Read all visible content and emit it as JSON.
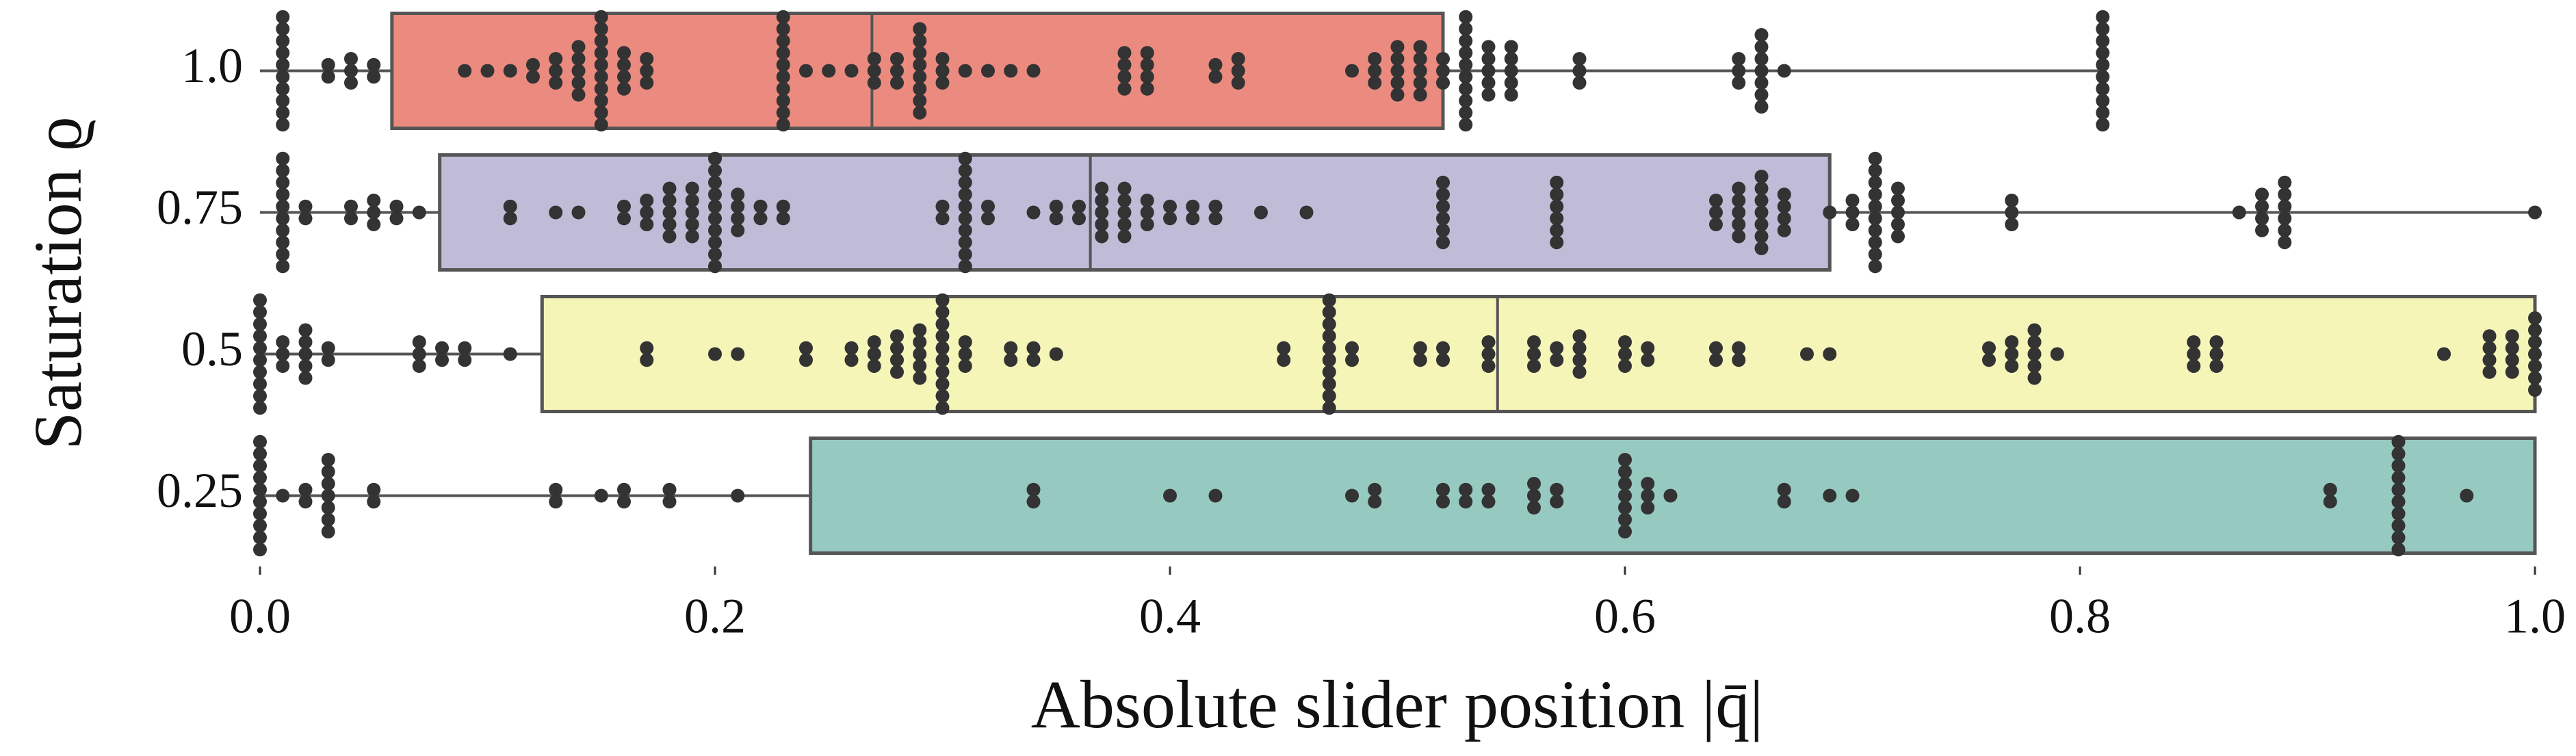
{
  "chart_data": {
    "type": "box",
    "xlabel": "Absolute slider position |q̄|",
    "ylabel": "Saturation ϱ",
    "categories": [
      "1.0",
      "0.75",
      "0.5",
      "0.25"
    ],
    "colors": [
      "#eb8b80",
      "#c0bcd8",
      "#f5f5b8",
      "#96c9c0"
    ],
    "boxes": [
      {
        "low": 0.0,
        "q1": 0.058,
        "median": 0.269,
        "q3": 0.52,
        "high": 0.81
      },
      {
        "low": 0.0,
        "q1": 0.079,
        "median": 0.365,
        "q3": 0.69,
        "high": 1.0
      },
      {
        "low": 0.0,
        "q1": 0.124,
        "median": 0.544,
        "q3": 1.0,
        "high": 1.0
      },
      {
        "low": 0.0,
        "q1": 0.242,
        "median": 0.941,
        "q3": 1.0,
        "high": 1.0
      }
    ],
    "points": [
      [
        0.01,
        0.01,
        0.01,
        0.01,
        0.01,
        0.01,
        0.01,
        0.01,
        0.01,
        0.01,
        0.03,
        0.03,
        0.04,
        0.04,
        0.04,
        0.05,
        0.05,
        0.09,
        0.1,
        0.11,
        0.12,
        0.12,
        0.13,
        0.13,
        0.13,
        0.14,
        0.14,
        0.14,
        0.14,
        0.14,
        0.15,
        0.15,
        0.15,
        0.15,
        0.15,
        0.15,
        0.15,
        0.15,
        0.15,
        0.15,
        0.16,
        0.16,
        0.16,
        0.16,
        0.17,
        0.17,
        0.17,
        0.23,
        0.23,
        0.23,
        0.23,
        0.23,
        0.23,
        0.23,
        0.23,
        0.23,
        0.23,
        0.24,
        0.25,
        0.26,
        0.27,
        0.27,
        0.27,
        0.28,
        0.28,
        0.28,
        0.29,
        0.29,
        0.29,
        0.29,
        0.29,
        0.29,
        0.29,
        0.29,
        0.3,
        0.3,
        0.3,
        0.31,
        0.32,
        0.33,
        0.34,
        0.38,
        0.38,
        0.38,
        0.38,
        0.39,
        0.39,
        0.39,
        0.39,
        0.42,
        0.42,
        0.43,
        0.43,
        0.43,
        0.48,
        0.49,
        0.49,
        0.49,
        0.5,
        0.5,
        0.5,
        0.5,
        0.5,
        0.51,
        0.51,
        0.51,
        0.51,
        0.51,
        0.52,
        0.52,
        0.52,
        0.53,
        0.53,
        0.53,
        0.53,
        0.53,
        0.53,
        0.53,
        0.53,
        0.53,
        0.53,
        0.54,
        0.54,
        0.54,
        0.54,
        0.54,
        0.55,
        0.55,
        0.55,
        0.55,
        0.55,
        0.58,
        0.58,
        0.58,
        0.65,
        0.65,
        0.65,
        0.66,
        0.66,
        0.66,
        0.66,
        0.66,
        0.66,
        0.66,
        0.67,
        0.81,
        0.81,
        0.81,
        0.81,
        0.81,
        0.81,
        0.81,
        0.81,
        0.81,
        0.81
      ],
      [
        0.01,
        0.01,
        0.01,
        0.01,
        0.01,
        0.01,
        0.01,
        0.01,
        0.01,
        0.01,
        0.02,
        0.02,
        0.04,
        0.04,
        0.05,
        0.05,
        0.05,
        0.06,
        0.06,
        0.07,
        0.11,
        0.11,
        0.13,
        0.14,
        0.16,
        0.16,
        0.17,
        0.17,
        0.17,
        0.18,
        0.18,
        0.18,
        0.18,
        0.18,
        0.19,
        0.19,
        0.19,
        0.19,
        0.19,
        0.2,
        0.2,
        0.2,
        0.2,
        0.2,
        0.2,
        0.2,
        0.2,
        0.2,
        0.2,
        0.21,
        0.21,
        0.21,
        0.21,
        0.22,
        0.22,
        0.23,
        0.23,
        0.3,
        0.3,
        0.31,
        0.31,
        0.31,
        0.31,
        0.31,
        0.31,
        0.31,
        0.31,
        0.31,
        0.31,
        0.32,
        0.32,
        0.34,
        0.35,
        0.35,
        0.36,
        0.36,
        0.37,
        0.37,
        0.37,
        0.37,
        0.37,
        0.38,
        0.38,
        0.38,
        0.38,
        0.38,
        0.39,
        0.39,
        0.39,
        0.4,
        0.4,
        0.41,
        0.41,
        0.42,
        0.42,
        0.44,
        0.46,
        0.52,
        0.52,
        0.52,
        0.52,
        0.52,
        0.52,
        0.57,
        0.57,
        0.57,
        0.57,
        0.57,
        0.57,
        0.64,
        0.64,
        0.64,
        0.65,
        0.65,
        0.65,
        0.65,
        0.65,
        0.66,
        0.66,
        0.66,
        0.66,
        0.66,
        0.66,
        0.66,
        0.67,
        0.67,
        0.67,
        0.67,
        0.69,
        0.7,
        0.7,
        0.7,
        0.71,
        0.71,
        0.71,
        0.71,
        0.71,
        0.71,
        0.71,
        0.71,
        0.71,
        0.71,
        0.72,
        0.72,
        0.72,
        0.72,
        0.72,
        0.77,
        0.77,
        0.77,
        0.87,
        0.88,
        0.88,
        0.88,
        0.88,
        0.89,
        0.89,
        0.89,
        0.89,
        0.89,
        0.89,
        1.0
      ],
      [
        0.0,
        0.0,
        0.0,
        0.0,
        0.0,
        0.0,
        0.0,
        0.0,
        0.0,
        0.0,
        0.01,
        0.01,
        0.01,
        0.02,
        0.02,
        0.02,
        0.02,
        0.02,
        0.03,
        0.03,
        0.07,
        0.07,
        0.07,
        0.08,
        0.08,
        0.09,
        0.09,
        0.11,
        0.17,
        0.17,
        0.2,
        0.21,
        0.24,
        0.24,
        0.26,
        0.26,
        0.27,
        0.27,
        0.27,
        0.28,
        0.28,
        0.28,
        0.28,
        0.29,
        0.29,
        0.29,
        0.29,
        0.29,
        0.3,
        0.3,
        0.3,
        0.3,
        0.3,
        0.3,
        0.3,
        0.3,
        0.3,
        0.3,
        0.31,
        0.31,
        0.31,
        0.33,
        0.33,
        0.34,
        0.34,
        0.35,
        0.45,
        0.45,
        0.47,
        0.47,
        0.47,
        0.47,
        0.47,
        0.47,
        0.47,
        0.47,
        0.47,
        0.47,
        0.48,
        0.48,
        0.51,
        0.51,
        0.52,
        0.52,
        0.54,
        0.54,
        0.54,
        0.56,
        0.56,
        0.56,
        0.57,
        0.57,
        0.58,
        0.58,
        0.58,
        0.58,
        0.6,
        0.6,
        0.6,
        0.61,
        0.61,
        0.64,
        0.64,
        0.65,
        0.65,
        0.68,
        0.69,
        0.76,
        0.76,
        0.77,
        0.77,
        0.77,
        0.78,
        0.78,
        0.78,
        0.78,
        0.78,
        0.79,
        0.85,
        0.85,
        0.85,
        0.86,
        0.86,
        0.86,
        0.96,
        0.98,
        0.98,
        0.98,
        0.98,
        0.99,
        0.99,
        0.99,
        0.99,
        1.0,
        1.0,
        1.0,
        1.0,
        1.0,
        1.0,
        1.0
      ],
      [
        0.0,
        0.0,
        0.0,
        0.0,
        0.0,
        0.0,
        0.0,
        0.0,
        0.0,
        0.0,
        0.01,
        0.02,
        0.02,
        0.03,
        0.03,
        0.03,
        0.03,
        0.03,
        0.03,
        0.03,
        0.05,
        0.05,
        0.13,
        0.13,
        0.15,
        0.16,
        0.16,
        0.18,
        0.18,
        0.21,
        0.34,
        0.34,
        0.4,
        0.42,
        0.48,
        0.49,
        0.49,
        0.52,
        0.52,
        0.53,
        0.53,
        0.54,
        0.54,
        0.56,
        0.56,
        0.56,
        0.57,
        0.57,
        0.6,
        0.6,
        0.6,
        0.6,
        0.6,
        0.6,
        0.6,
        0.61,
        0.61,
        0.61,
        0.62,
        0.67,
        0.67,
        0.69,
        0.7,
        0.91,
        0.91,
        0.94,
        0.94,
        0.94,
        0.94,
        0.94,
        0.94,
        0.94,
        0.94,
        0.94,
        0.94,
        0.97
      ]
    ],
    "xlim": [
      0,
      1
    ],
    "xticks": [
      {
        "value": 0,
        "label": "0.0"
      },
      0.2,
      0.4,
      0.6,
      0.8,
      {
        "value": 1,
        "label": "1.0"
      }
    ]
  }
}
